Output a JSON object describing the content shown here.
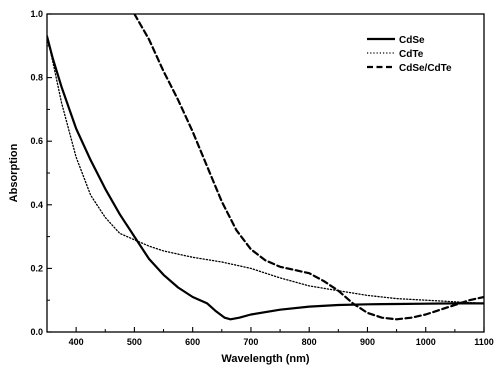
{
  "chart_data": {
    "type": "line",
    "xlabel": "Wavelength (nm)",
    "ylabel": "Absorption",
    "xlim": [
      350,
      1100
    ],
    "ylim": [
      0.0,
      1.0
    ],
    "xticks": [
      400,
      500,
      600,
      700,
      800,
      900,
      1000,
      1100
    ],
    "yticks": [
      0.0,
      0.2,
      0.4,
      0.6,
      0.8,
      1.0
    ],
    "xtick_labels": [
      "400",
      "500",
      "600",
      "700",
      "800",
      "900",
      "1000",
      "1100"
    ],
    "ytick_labels": [
      "0.0",
      "0.2",
      "0.4",
      "0.6",
      "0.8",
      "1.0"
    ],
    "grid": false,
    "legend_position": "top-right",
    "series": [
      {
        "name": "CdSe",
        "style": "solid",
        "color": "#000000",
        "points": [
          [
            350,
            0.93
          ],
          [
            360,
            0.86
          ],
          [
            375,
            0.77
          ],
          [
            400,
            0.64
          ],
          [
            425,
            0.54
          ],
          [
            450,
            0.45
          ],
          [
            475,
            0.37
          ],
          [
            500,
            0.3
          ],
          [
            525,
            0.23
          ],
          [
            550,
            0.18
          ],
          [
            575,
            0.14
          ],
          [
            600,
            0.11
          ],
          [
            625,
            0.09
          ],
          [
            640,
            0.065
          ],
          [
            655,
            0.045
          ],
          [
            665,
            0.04
          ],
          [
            680,
            0.045
          ],
          [
            700,
            0.055
          ],
          [
            750,
            0.07
          ],
          [
            800,
            0.08
          ],
          [
            850,
            0.085
          ],
          [
            900,
            0.087
          ],
          [
            950,
            0.088
          ],
          [
            1000,
            0.089
          ],
          [
            1050,
            0.09
          ],
          [
            1100,
            0.09
          ]
        ]
      },
      {
        "name": "CdTe",
        "style": "dotted",
        "color": "#000000",
        "points": [
          [
            350,
            0.93
          ],
          [
            360,
            0.85
          ],
          [
            375,
            0.72
          ],
          [
            400,
            0.55
          ],
          [
            425,
            0.43
          ],
          [
            450,
            0.36
          ],
          [
            475,
            0.31
          ],
          [
            500,
            0.29
          ],
          [
            525,
            0.27
          ],
          [
            550,
            0.255
          ],
          [
            575,
            0.245
          ],
          [
            600,
            0.235
          ],
          [
            650,
            0.22
          ],
          [
            700,
            0.2
          ],
          [
            750,
            0.17
          ],
          [
            800,
            0.145
          ],
          [
            850,
            0.13
          ],
          [
            900,
            0.115
          ],
          [
            950,
            0.105
          ],
          [
            1000,
            0.1
          ],
          [
            1050,
            0.095
          ],
          [
            1100,
            0.09
          ]
        ]
      },
      {
        "name": "CdSe/CdTe",
        "style": "dashed",
        "color": "#000000",
        "points": [
          [
            500,
            1.0
          ],
          [
            525,
            0.92
          ],
          [
            550,
            0.82
          ],
          [
            575,
            0.73
          ],
          [
            600,
            0.63
          ],
          [
            625,
            0.52
          ],
          [
            650,
            0.41
          ],
          [
            675,
            0.32
          ],
          [
            700,
            0.26
          ],
          [
            725,
            0.225
          ],
          [
            750,
            0.205
          ],
          [
            800,
            0.185
          ],
          [
            825,
            0.16
          ],
          [
            850,
            0.13
          ],
          [
            875,
            0.09
          ],
          [
            900,
            0.06
          ],
          [
            925,
            0.045
          ],
          [
            950,
            0.04
          ],
          [
            975,
            0.045
          ],
          [
            1000,
            0.055
          ],
          [
            1025,
            0.07
          ],
          [
            1050,
            0.085
          ],
          [
            1075,
            0.1
          ],
          [
            1100,
            0.11
          ]
        ]
      }
    ]
  }
}
